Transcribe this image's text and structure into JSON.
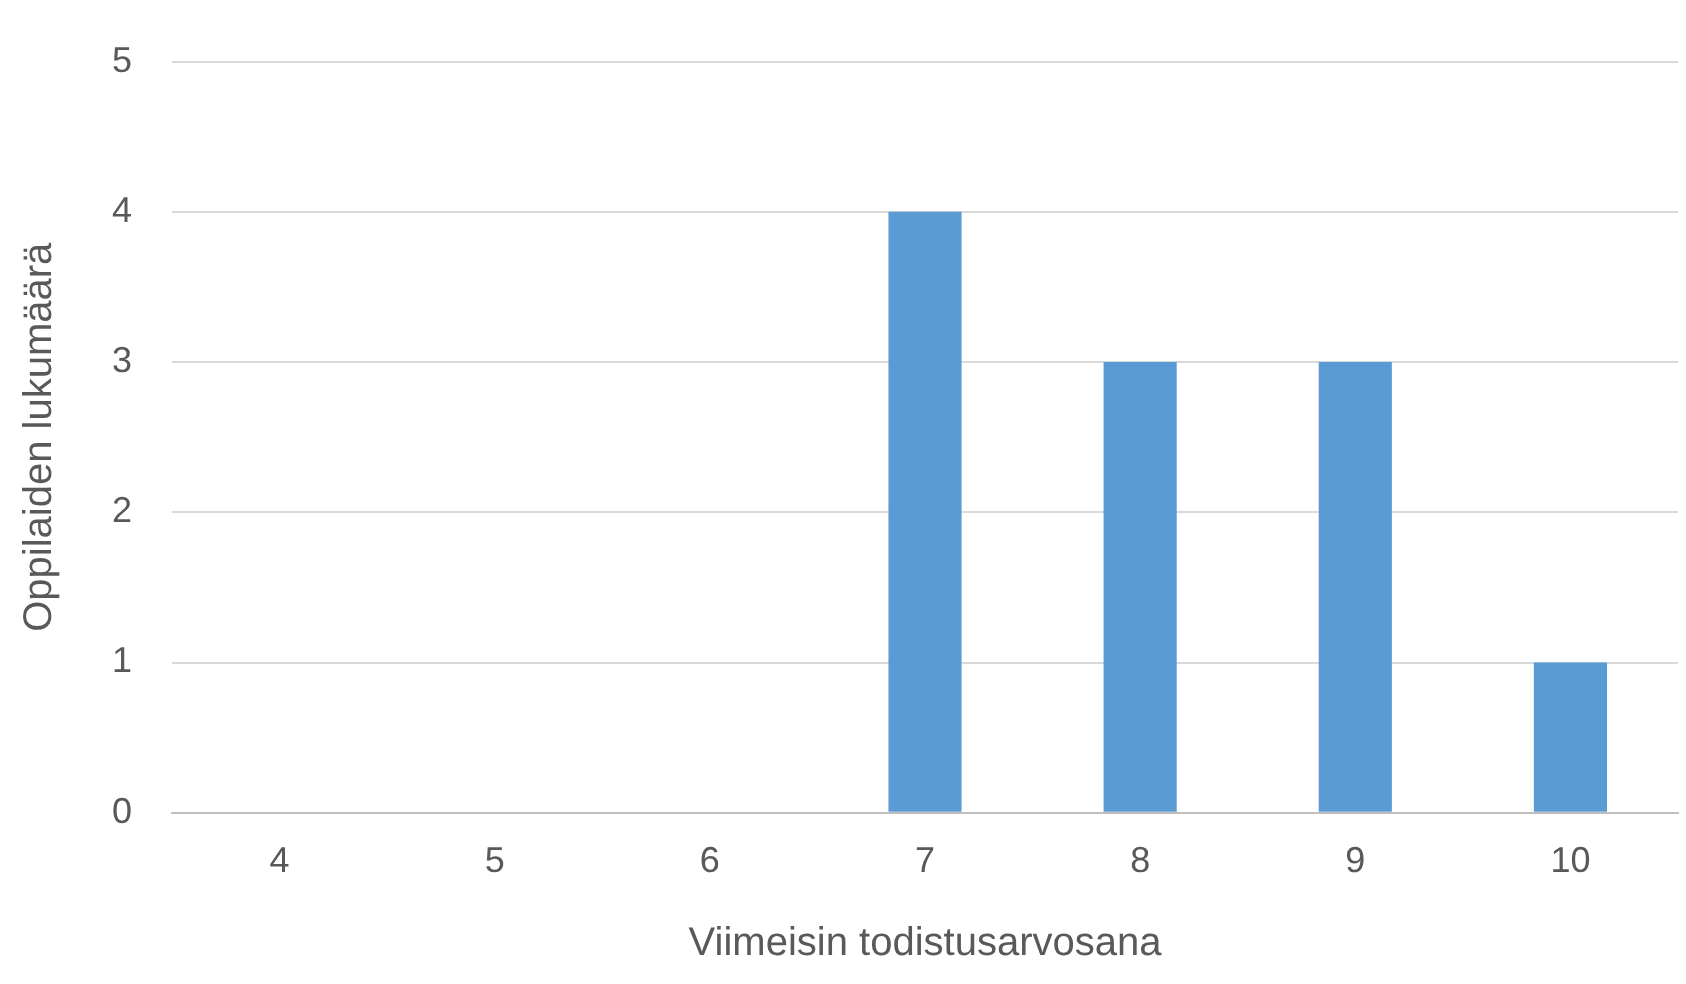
{
  "chart_data": {
    "type": "bar",
    "xlabel": "Viimeisin todistusarvosana",
    "ylabel": "Oppilaiden lukumäärä",
    "categories": [
      "4",
      "5",
      "6",
      "7",
      "8",
      "9",
      "10"
    ],
    "values": [
      0,
      0,
      0,
      4,
      3,
      3,
      1
    ],
    "color": "#5b9bd5",
    "ylim": [
      0,
      5
    ],
    "yticks": [
      0,
      1,
      2,
      3,
      4,
      5
    ],
    "grid": "y",
    "legend": false
  }
}
